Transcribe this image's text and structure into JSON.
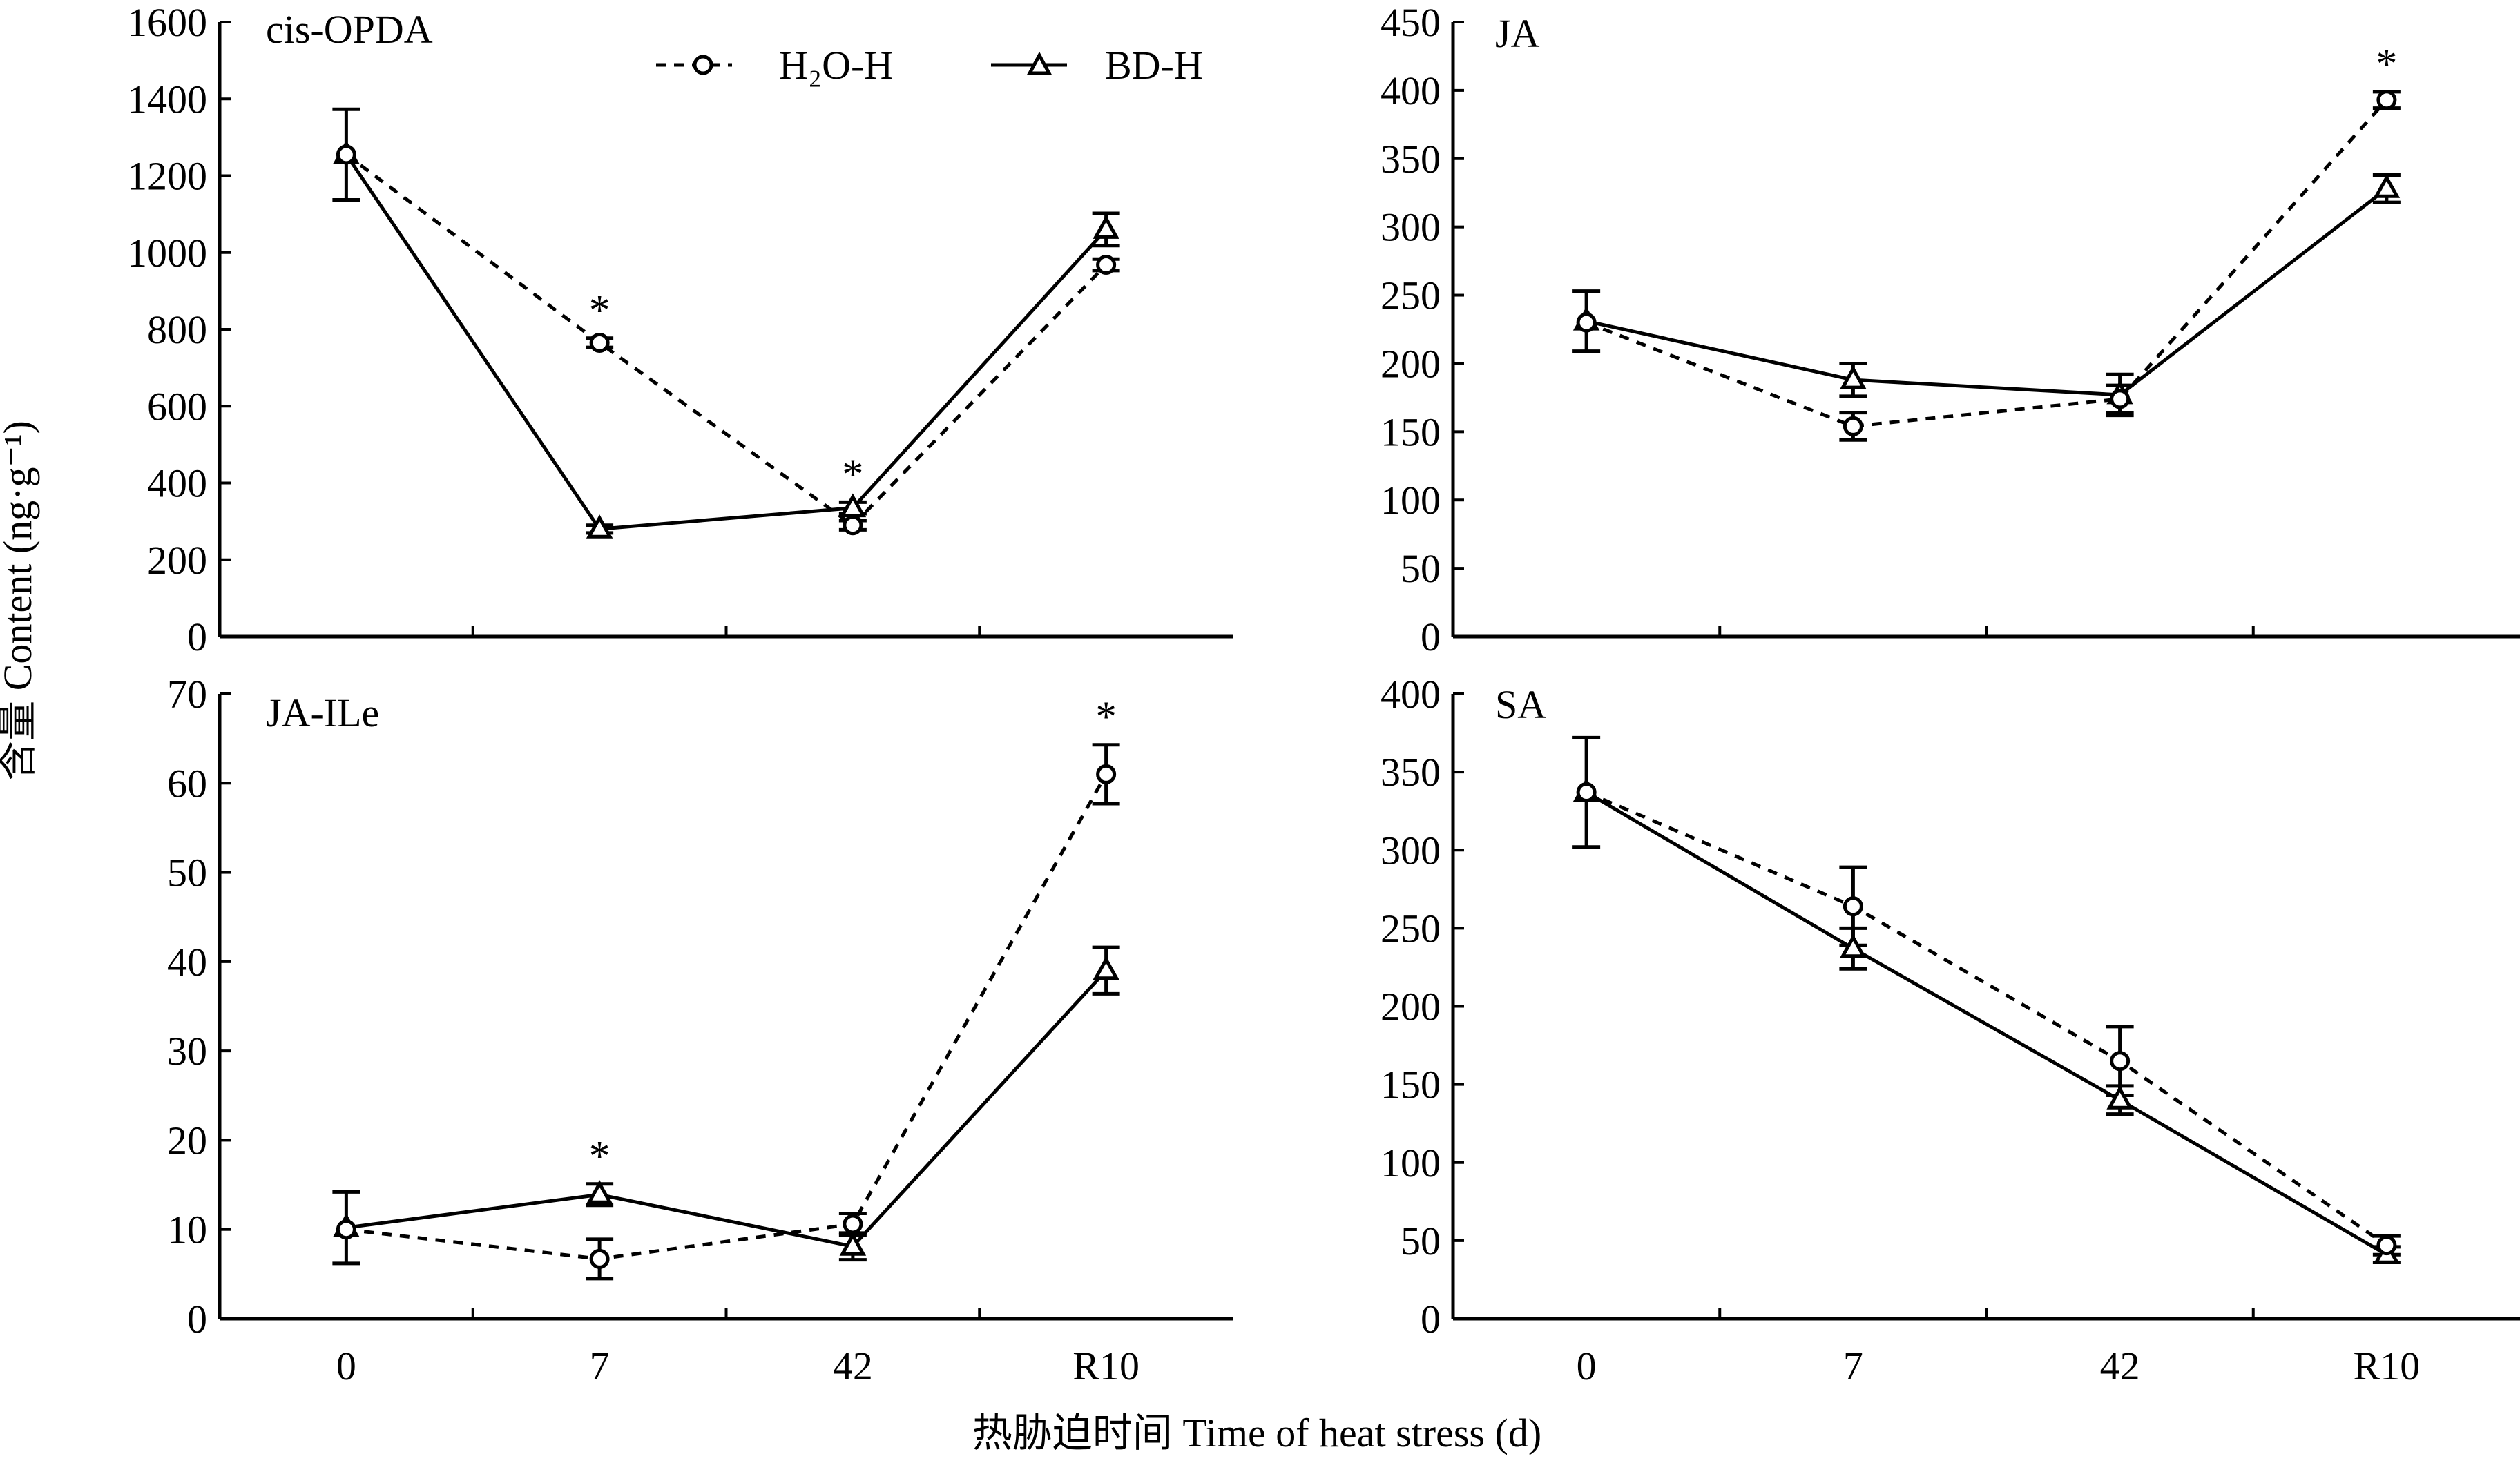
{
  "figure": {
    "y_axis_title": "含量 Content (ng·g⁻¹)",
    "x_axis_title": "热胁迫时间 Time of heat stress (d)",
    "legend": [
      {
        "label": "H₂O-H",
        "style": "dashed",
        "marker": "circle"
      },
      {
        "label": "BD-H",
        "style": "solid",
        "marker": "triangle"
      }
    ],
    "colors": {
      "ink": "#000000",
      "background": "#ffffff"
    }
  },
  "chart_data": [
    {
      "type": "line",
      "title": "cis-OPDA",
      "categories": [
        "0",
        "7",
        "42",
        "R10"
      ],
      "ylim": [
        0,
        1600
      ],
      "yticks": [
        0,
        200,
        400,
        600,
        800,
        1000,
        1200,
        1400,
        1600
      ],
      "series": [
        {
          "name": "H₂O-H",
          "values": [
            1255,
            765,
            290,
            968
          ],
          "errors": [
            0,
            12,
            12,
            15
          ]
        },
        {
          "name": "BD-H",
          "values": [
            1255,
            280,
            335,
            1060
          ],
          "errors": [
            118,
            10,
            15,
            42
          ]
        }
      ],
      "significance": [
        "",
        "*",
        "*",
        ""
      ]
    },
    {
      "type": "line",
      "title": "JA",
      "categories": [
        "0",
        "7",
        "42",
        "R10"
      ],
      "ylim": [
        0,
        450
      ],
      "yticks": [
        0,
        50,
        100,
        150,
        200,
        250,
        300,
        350,
        400,
        450
      ],
      "series": [
        {
          "name": "H₂O-H",
          "values": [
            230,
            154,
            174,
            393
          ],
          "errors": [
            0,
            10,
            10,
            6
          ]
        },
        {
          "name": "BD-H",
          "values": [
            231,
            188,
            177,
            328
          ],
          "errors": [
            22,
            12,
            15,
            10
          ]
        }
      ],
      "significance": [
        "",
        "",
        "",
        "*"
      ]
    },
    {
      "type": "line",
      "title": "JA-ILe",
      "categories": [
        "0",
        "7",
        "42",
        "R10"
      ],
      "ylim": [
        0,
        70
      ],
      "yticks": [
        0,
        10,
        20,
        30,
        40,
        50,
        60,
        70
      ],
      "series": [
        {
          "name": "H₂O-H",
          "values": [
            10,
            6.7,
            10.6,
            61
          ],
          "errors": [
            0,
            2.2,
            1.2,
            3.3
          ]
        },
        {
          "name": "BD-H",
          "values": [
            10.2,
            13.9,
            8.1,
            39
          ],
          "errors": [
            4,
            1.2,
            1.5,
            2.6
          ]
        }
      ],
      "significance": [
        "",
        "*",
        "",
        "*"
      ]
    },
    {
      "type": "line",
      "title": "SA",
      "categories": [
        "0",
        "7",
        "42",
        "R10"
      ],
      "ylim": [
        0,
        400
      ],
      "yticks": [
        0,
        50,
        100,
        150,
        200,
        250,
        300,
        350,
        400
      ],
      "series": [
        {
          "name": "H₂O-H",
          "values": [
            337,
            264,
            165,
            47
          ],
          "errors": [
            0,
            25,
            22,
            6
          ]
        },
        {
          "name": "BD-H",
          "values": [
            337,
            237,
            140,
            41
          ],
          "errors": [
            35,
            13,
            9,
            5
          ]
        }
      ],
      "significance": [
        "",
        "",
        "",
        ""
      ]
    }
  ]
}
